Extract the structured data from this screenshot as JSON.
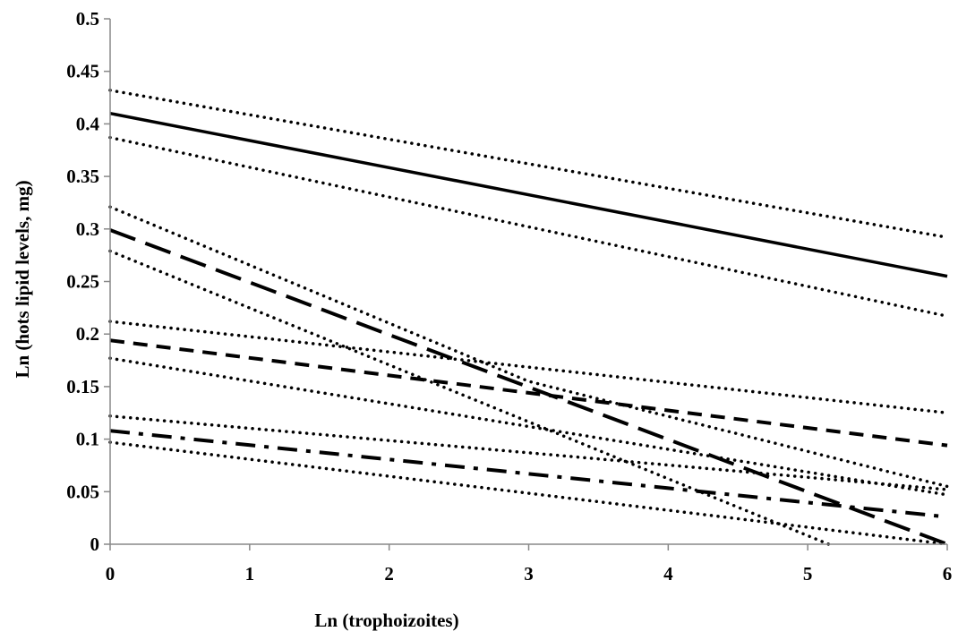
{
  "chart_data": {
    "type": "line",
    "title": "",
    "xlabel": "Ln (trophoizoites)",
    "ylabel": "Ln (hots  lipid levels, mg)",
    "xlim": [
      0,
      6
    ],
    "ylim": [
      0,
      0.5
    ],
    "x_ticks": [
      "0",
      "1",
      "2",
      "3",
      "4",
      "5",
      "6"
    ],
    "y_ticks": [
      "0",
      "0.05",
      "0.1",
      "0.15",
      "0.2",
      "0.25",
      "0.3",
      "0.35",
      "0.4",
      "0.45",
      "0.5"
    ],
    "grid": false,
    "legend": "none",
    "series": [
      {
        "style": "solid",
        "color": "#000000",
        "x": [
          0,
          6
        ],
        "y": [
          0.41,
          0.255
        ]
      },
      {
        "style": "dotted",
        "color": "#000000",
        "x": [
          0,
          6
        ],
        "y": [
          0.432,
          0.292
        ]
      },
      {
        "style": "dotted",
        "color": "#000000",
        "x": [
          0,
          6
        ],
        "y": [
          0.387,
          0.217
        ]
      },
      {
        "style": "long-dash",
        "color": "#000000",
        "x": [
          0,
          6
        ],
        "y": [
          0.299,
          0.0
        ]
      },
      {
        "style": "dotted",
        "color": "#000000",
        "x": [
          0,
          3,
          6
        ],
        "y": [
          0.321,
          0.155,
          0.055
        ]
      },
      {
        "style": "dotted",
        "color": "#000000",
        "x": [
          0,
          5.15
        ],
        "y": [
          0.279,
          0.0
        ]
      },
      {
        "style": "dashed",
        "color": "#000000",
        "x": [
          0,
          6
        ],
        "y": [
          0.194,
          0.094
        ]
      },
      {
        "style": "dotted",
        "color": "#000000",
        "x": [
          0,
          6
        ],
        "y": [
          0.212,
          0.125
        ]
      },
      {
        "style": "dotted",
        "color": "#000000",
        "x": [
          0,
          6
        ],
        "y": [
          0.177,
          0.047
        ]
      },
      {
        "style": "dash-dot",
        "color": "#000000",
        "x": [
          0,
          6
        ],
        "y": [
          0.108,
          0.026
        ]
      },
      {
        "style": "dotted",
        "color": "#000000",
        "x": [
          0,
          6
        ],
        "y": [
          0.122,
          0.052
        ]
      },
      {
        "style": "dotted",
        "color": "#000000",
        "x": [
          0,
          6
        ],
        "y": [
          0.097,
          0.0
        ]
      }
    ]
  }
}
